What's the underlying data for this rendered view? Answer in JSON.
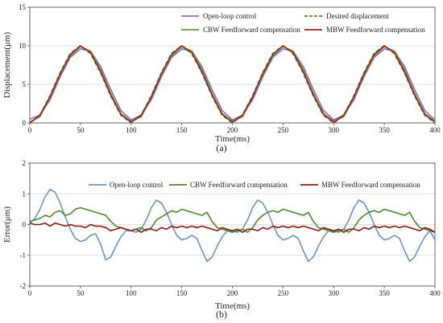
{
  "chart_data": [
    {
      "type": "line",
      "panel_label": "(a)",
      "xlabel": "Time(ms)",
      "ylabel": "Displacement(μm)",
      "xlim": [
        0,
        400
      ],
      "ylim": [
        0,
        15
      ],
      "xticks": [
        0,
        50,
        100,
        150,
        200,
        250,
        300,
        350,
        400
      ],
      "yticks": [
        0,
        5,
        10,
        15
      ],
      "grid": "horizontal",
      "legend_position": "top, two columns",
      "x": [
        0,
        10,
        20,
        30,
        40,
        50,
        60,
        70,
        80,
        90,
        100,
        110,
        120,
        130,
        140,
        150,
        160,
        170,
        180,
        190,
        200,
        210,
        220,
        230,
        240,
        250,
        260,
        270,
        280,
        290,
        300,
        310,
        320,
        330,
        340,
        350,
        360,
        370,
        380,
        390,
        400
      ],
      "series": [
        {
          "name": "Open-loop control",
          "color": "#7b6fd6",
          "dash": "solid",
          "values": [
            0.5,
            1.0,
            3.0,
            6.0,
            8.5,
            9.6,
            9.3,
            7.3,
            4.3,
            1.6,
            0.4,
            1.0,
            3.0,
            6.0,
            8.5,
            9.6,
            9.3,
            7.3,
            4.3,
            1.6,
            0.4,
            1.0,
            3.0,
            6.0,
            8.5,
            9.6,
            9.3,
            7.3,
            4.3,
            1.6,
            0.4,
            1.0,
            3.0,
            6.0,
            8.5,
            9.6,
            9.3,
            7.3,
            4.3,
            1.6,
            0.4
          ]
        },
        {
          "name": "Desired displacement",
          "color": "#5a8a2a",
          "dash": "dashed",
          "values": [
            0.0,
            1.0,
            3.5,
            6.5,
            9.0,
            10.0,
            9.0,
            6.5,
            3.5,
            1.0,
            0.0,
            1.0,
            3.5,
            6.5,
            9.0,
            10.0,
            9.0,
            6.5,
            3.5,
            1.0,
            0.0,
            1.0,
            3.5,
            6.5,
            9.0,
            10.0,
            9.0,
            6.5,
            3.5,
            1.0,
            0.0,
            1.0,
            3.5,
            6.5,
            9.0,
            10.0,
            9.0,
            6.5,
            3.5,
            1.0,
            0.0
          ]
        },
        {
          "name": "CBW Feedforward compensation",
          "color": "#5f9a3c",
          "dash": "solid",
          "values": [
            0.1,
            0.8,
            3.3,
            6.2,
            8.7,
            9.9,
            9.3,
            6.9,
            3.8,
            1.2,
            0.2,
            0.8,
            3.3,
            6.2,
            8.7,
            9.9,
            9.3,
            6.9,
            3.8,
            1.2,
            0.2,
            0.8,
            3.3,
            6.2,
            8.7,
            9.9,
            9.3,
            6.9,
            3.8,
            1.2,
            0.2,
            0.8,
            3.3,
            6.2,
            8.7,
            9.9,
            9.3,
            6.9,
            3.8,
            1.2,
            0.2
          ]
        },
        {
          "name": "MBW Feedforward compensation",
          "color": "#a0231c",
          "dash": "solid",
          "values": [
            0.0,
            1.0,
            3.4,
            6.4,
            8.9,
            10.0,
            9.1,
            6.6,
            3.6,
            1.1,
            0.1,
            1.0,
            3.4,
            6.4,
            8.9,
            10.0,
            9.1,
            6.6,
            3.6,
            1.1,
            0.1,
            1.0,
            3.4,
            6.4,
            8.9,
            10.0,
            9.1,
            6.6,
            3.6,
            1.1,
            0.1,
            1.0,
            3.4,
            6.4,
            8.9,
            10.0,
            9.1,
            6.6,
            3.6,
            1.1,
            0.1
          ]
        }
      ]
    },
    {
      "type": "line",
      "panel_label": "(b)",
      "xlabel": "Time(ms)",
      "ylabel": "Error(μm)",
      "xlim": [
        0,
        400
      ],
      "ylim": [
        -2,
        2
      ],
      "xticks": [
        0,
        50,
        100,
        150,
        200,
        250,
        300,
        350,
        400
      ],
      "yticks": [
        -2,
        -1,
        0,
        1,
        2
      ],
      "grid": "horizontal",
      "legend_position": "top, single row",
      "x": [
        0,
        5,
        10,
        15,
        20,
        25,
        30,
        35,
        40,
        45,
        50,
        55,
        60,
        65,
        70,
        75,
        80,
        85,
        90,
        95,
        100,
        105,
        110,
        115,
        120,
        125,
        130,
        135,
        140,
        145,
        150,
        155,
        160,
        165,
        170,
        175,
        180,
        185,
        190,
        195,
        200,
        205,
        210,
        215,
        220,
        225,
        230,
        235,
        240,
        245,
        250,
        255,
        260,
        265,
        270,
        275,
        280,
        285,
        290,
        295,
        300,
        305,
        310,
        315,
        320,
        325,
        330,
        335,
        340,
        345,
        350,
        355,
        360,
        365,
        370,
        375,
        380,
        385,
        390,
        395,
        400
      ],
      "series": [
        {
          "name": "Open-loop control",
          "color": "#6a94c8",
          "values": [
            0.05,
            0.2,
            0.5,
            0.9,
            1.15,
            1.05,
            0.7,
            0.25,
            -0.15,
            -0.45,
            -0.55,
            -0.5,
            -0.35,
            -0.3,
            -0.65,
            -1.15,
            -1.05,
            -0.7,
            -0.4,
            -0.2,
            -0.2,
            -0.25,
            -0.15,
            0.15,
            0.55,
            0.8,
            0.7,
            0.4,
            0.0,
            -0.35,
            -0.5,
            -0.45,
            -0.35,
            -0.45,
            -0.85,
            -1.2,
            -1.05,
            -0.7,
            -0.4,
            -0.2,
            -0.2,
            -0.25,
            -0.15,
            0.15,
            0.55,
            0.8,
            0.7,
            0.4,
            0.0,
            -0.35,
            -0.5,
            -0.45,
            -0.35,
            -0.45,
            -0.85,
            -1.2,
            -1.05,
            -0.7,
            -0.4,
            -0.2,
            -0.2,
            -0.25,
            -0.15,
            0.15,
            0.55,
            0.8,
            0.7,
            0.4,
            0.0,
            -0.35,
            -0.5,
            -0.45,
            -0.35,
            -0.45,
            -0.85,
            -1.2,
            -1.05,
            -0.7,
            -0.4,
            -0.2,
            -0.5
          ]
        },
        {
          "name": "CBW Feedforward compensation",
          "color": "#4f8a2e",
          "values": [
            0.1,
            0.15,
            0.2,
            0.3,
            0.25,
            0.4,
            0.45,
            0.3,
            0.35,
            0.5,
            0.55,
            0.5,
            0.45,
            0.4,
            0.35,
            0.3,
            0.1,
            -0.05,
            -0.1,
            -0.15,
            -0.2,
            -0.15,
            -0.1,
            -0.2,
            -0.1,
            0.15,
            0.25,
            0.35,
            0.45,
            0.4,
            0.5,
            0.45,
            0.4,
            0.35,
            0.3,
            0.4,
            0.1,
            -0.1,
            -0.15,
            -0.2,
            -0.25,
            -0.2,
            -0.15,
            -0.25,
            -0.1,
            0.15,
            0.3,
            0.4,
            0.45,
            0.4,
            0.5,
            0.45,
            0.4,
            0.35,
            0.3,
            0.4,
            0.1,
            -0.1,
            -0.15,
            -0.2,
            -0.25,
            -0.2,
            -0.15,
            -0.25,
            -0.1,
            0.15,
            0.3,
            0.4,
            0.45,
            0.4,
            0.5,
            0.45,
            0.4,
            0.35,
            0.3,
            0.4,
            0.1,
            -0.1,
            -0.15,
            -0.2,
            -0.25
          ]
        },
        {
          "name": "MBW Feedforward compensation",
          "color": "#8b1a12",
          "values": [
            0.05,
            0.0,
            0.0,
            0.05,
            -0.05,
            0.05,
            0.0,
            -0.05,
            0.0,
            -0.05,
            -0.05,
            -0.1,
            0.0,
            -0.05,
            -0.05,
            -0.1,
            -0.2,
            -0.15,
            -0.1,
            -0.15,
            -0.2,
            -0.15,
            -0.25,
            -0.15,
            -0.15,
            -0.2,
            -0.1,
            -0.15,
            -0.05,
            -0.1,
            -0.05,
            -0.1,
            -0.05,
            -0.1,
            -0.05,
            -0.1,
            -0.15,
            -0.2,
            -0.1,
            -0.15,
            -0.2,
            -0.15,
            -0.25,
            -0.15,
            -0.15,
            -0.2,
            -0.1,
            -0.15,
            -0.05,
            -0.1,
            -0.05,
            -0.1,
            -0.05,
            -0.1,
            -0.05,
            -0.1,
            -0.15,
            -0.2,
            -0.1,
            -0.15,
            -0.2,
            -0.15,
            -0.25,
            -0.15,
            -0.15,
            -0.2,
            -0.1,
            -0.15,
            -0.05,
            -0.1,
            -0.05,
            -0.1,
            -0.05,
            -0.1,
            -0.05,
            -0.1,
            -0.15,
            -0.2,
            -0.1,
            -0.15,
            -0.25
          ]
        }
      ]
    }
  ]
}
